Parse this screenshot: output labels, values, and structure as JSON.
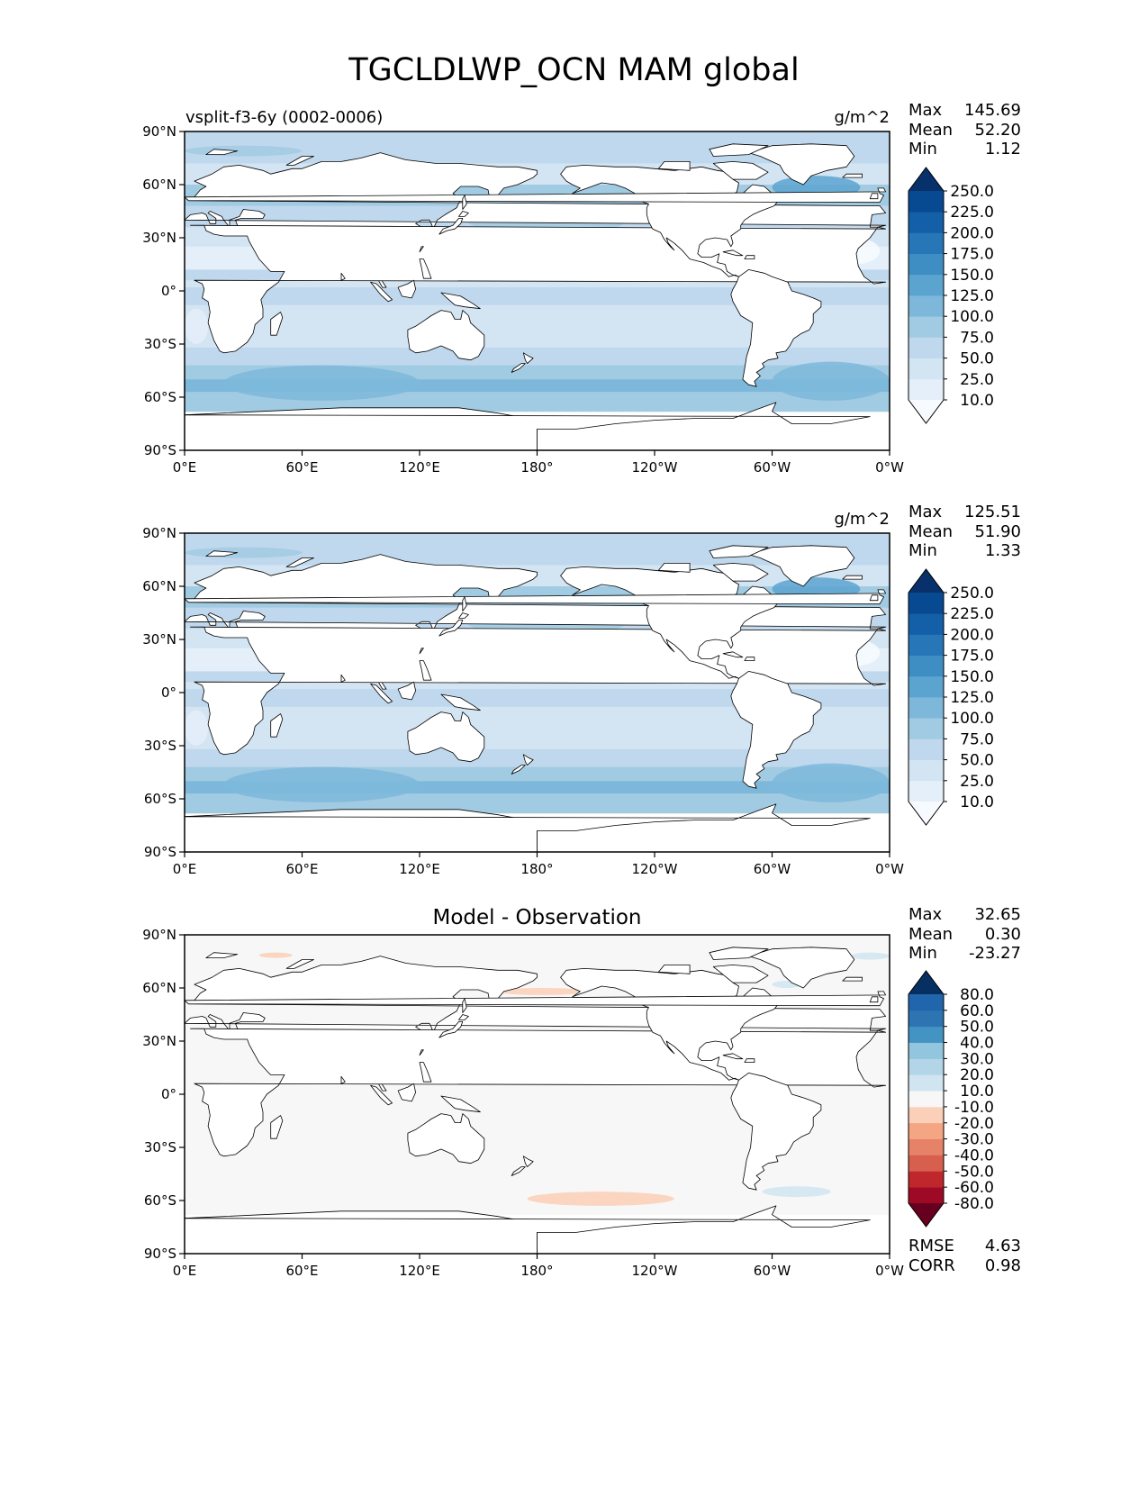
{
  "figure": {
    "title": "TGCLDLWP_OCN MAM global"
  },
  "axes": {
    "lat_ticks": [
      "90°N",
      "60°N",
      "30°N",
      "0°",
      "30°S",
      "60°S",
      "90°S"
    ],
    "lon_ticks": [
      "0°E",
      "60°E",
      "120°E",
      "180°",
      "120°W",
      "60°W",
      "0°W"
    ]
  },
  "panels": [
    {
      "label": "vsplit-f3-6y (0002-0006)",
      "units": "g/m^2",
      "heading": "",
      "stats": [
        {
          "name": "Max",
          "value": "145.69"
        },
        {
          "name": "Mean",
          "value": "52.20"
        },
        {
          "name": "Min",
          "value": "1.12"
        }
      ],
      "colorbar": {
        "ticks": [
          "250.0",
          "225.0",
          "200.0",
          "175.0",
          "150.0",
          "125.0",
          "100.0",
          "75.0",
          "50.0",
          "25.0",
          "10.0"
        ],
        "colors": [
          "#f7fbff",
          "#e5eff9",
          "#d3e4f3",
          "#bfd8ed",
          "#a1cbe2",
          "#7db8da",
          "#5ca4d0",
          "#3e8ec4",
          "#2676b8",
          "#1460a8",
          "#084a91",
          "#08306b"
        ]
      }
    },
    {
      "label": "",
      "units": "g/m^2",
      "heading": "",
      "stats": [
        {
          "name": "Max",
          "value": "125.51"
        },
        {
          "name": "Mean",
          "value": "51.90"
        },
        {
          "name": "Min",
          "value": "1.33"
        }
      ],
      "colorbar": {
        "ticks": [
          "250.0",
          "225.0",
          "200.0",
          "175.0",
          "150.0",
          "125.0",
          "100.0",
          "75.0",
          "50.0",
          "25.0",
          "10.0"
        ],
        "colors": [
          "#f7fbff",
          "#e5eff9",
          "#d3e4f3",
          "#bfd8ed",
          "#a1cbe2",
          "#7db8da",
          "#5ca4d0",
          "#3e8ec4",
          "#2676b8",
          "#1460a8",
          "#084a91",
          "#08306b"
        ]
      }
    },
    {
      "label": "",
      "units": "",
      "heading": "Model - Observation",
      "stats": [
        {
          "name": "Max",
          "value": "32.65"
        },
        {
          "name": "Mean",
          "value": "0.30"
        },
        {
          "name": "Min",
          "value": "-23.27"
        }
      ],
      "colorbar": {
        "ticks": [
          "80.0",
          "60.0",
          "50.0",
          "40.0",
          "30.0",
          "20.0",
          "10.0",
          "-10.0",
          "-20.0",
          "-30.0",
          "-40.0",
          "-50.0",
          "-60.0",
          "-80.0"
        ],
        "colors": [
          "#67001f",
          "#9e0a25",
          "#c0272d",
          "#d6604d",
          "#e58267",
          "#f4a582",
          "#fbd0b9",
          "#f7f7f7",
          "#d1e5f0",
          "#b3d5e8",
          "#92c5de",
          "#4393c3",
          "#2d74b3",
          "#2166ac",
          "#053061"
        ]
      },
      "metrics": [
        {
          "name": "RMSE",
          "value": "4.63"
        },
        {
          "name": "CORR",
          "value": "0.98"
        }
      ]
    }
  ],
  "colors": {
    "land": "#ffffff",
    "coast": "#000000"
  }
}
